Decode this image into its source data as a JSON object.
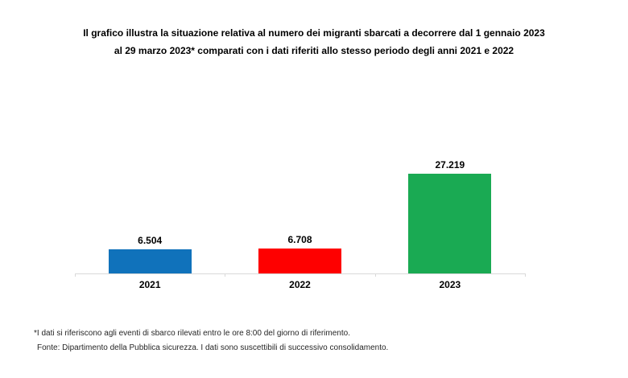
{
  "page": {
    "background_color": "#ffffff"
  },
  "title": {
    "text": "Il grafico illustra la situazione relativa al numero dei migranti sbarcati a decorrere dal 1 gennaio 2023 al 29 marzo 2023* comparati con i dati riferiti allo stesso periodo degli anni 2021 e 2022"
  },
  "chart_data": {
    "type": "bar",
    "categories": [
      "2021",
      "2022",
      "2023"
    ],
    "values": [
      6504,
      6708,
      27219
    ],
    "value_labels": [
      "6.504",
      "6.708",
      "27.219"
    ],
    "series_colors": [
      "#1072BB",
      "#FE0000",
      "#1AAA53"
    ],
    "title": "Il grafico illustra la situazione relativa al numero dei migranti sbarcati a decorrere dal 1 gennaio 2023 al 29 marzo 2023* comparati con i dati riferiti allo stesso periodo degli anni 2021 e 2022",
    "xlabel": "",
    "ylabel": "",
    "ylim": [
      0,
      27219
    ],
    "grid": false,
    "legend": false,
    "axis_line_color": "#D9D9D9",
    "data_label_position": "above-bar"
  },
  "footnotes": {
    "line1": "*I dati si riferiscono agli eventi di sbarco rilevati entro le ore 8:00 del giorno di riferimento.",
    "line2": "Fonte: Dipartimento della Pubblica sicurezza. I dati sono suscettibili di successivo consolidamento."
  }
}
